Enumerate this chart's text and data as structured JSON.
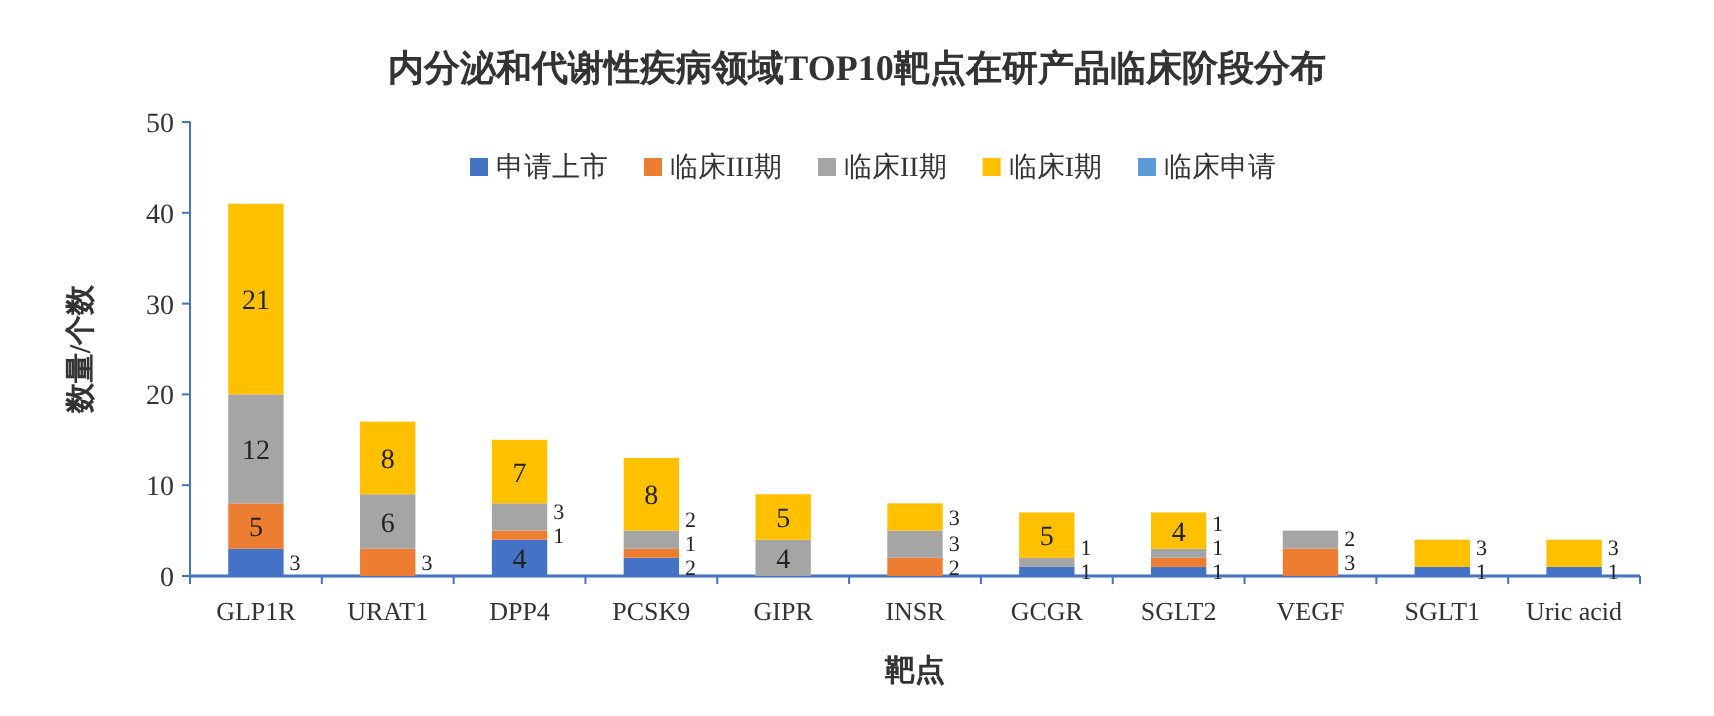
{
  "chart_data": {
    "type": "bar",
    "title": "内分泌和代谢性疾病领域TOP10靶点在研产品临床阶段分布",
    "xlabel": "靶点",
    "ylabel": "数量/个数",
    "categories": [
      "GLP1R",
      "URAT1",
      "DPP4",
      "PCSK9",
      "GIPR",
      "INSR",
      "GCGR",
      "SGLT2",
      "VEGF",
      "SGLT1",
      "Uric acid"
    ],
    "stacked": true,
    "data_labels": true,
    "legend": "top",
    "grid": false,
    "ylim": [
      0,
      50
    ],
    "yticks": [
      0,
      10,
      20,
      30,
      40,
      50
    ],
    "series": [
      {
        "name": "申请上市",
        "color": "#4472c4",
        "values": [
          3,
          null,
          4,
          2,
          null,
          null,
          1,
          1,
          null,
          1,
          1
        ]
      },
      {
        "name": "临床III期",
        "color": "#ed7d31",
        "values": [
          5,
          3,
          1,
          1,
          null,
          2,
          null,
          1,
          3,
          null,
          null
        ]
      },
      {
        "name": "临床II期",
        "color": "#a5a5a5",
        "values": [
          12,
          6,
          3,
          2,
          4,
          3,
          1,
          1,
          2,
          null,
          null
        ]
      },
      {
        "name": "临床I期",
        "color": "#ffc000",
        "values": [
          21,
          8,
          7,
          8,
          5,
          3,
          5,
          4,
          null,
          3,
          3
        ]
      },
      {
        "name": "临床申请",
        "color": "#5b9bd5",
        "values": [
          null,
          null,
          null,
          null,
          null,
          null,
          null,
          null,
          null,
          null,
          null
        ]
      }
    ]
  }
}
